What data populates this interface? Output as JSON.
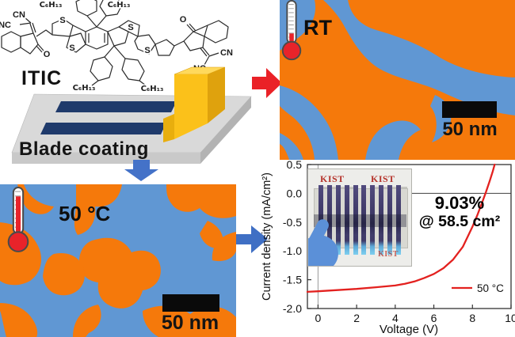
{
  "molecule": {
    "name": "ITIC",
    "labels": {
      "cn_top_left": "CN",
      "nc_left": "NC",
      "o_left": "O",
      "s1": "S",
      "s2": "S",
      "s3": "S",
      "s4": "S",
      "o_right": "O",
      "nc_right": "NC",
      "cn_right": "CN"
    },
    "hexyl_labels": [
      "C₆H₁₃",
      "C₆H₁₃",
      "C₆H₁₃",
      "C₆H₁₃"
    ]
  },
  "process": {
    "caption": "Blade coating"
  },
  "rt_panel": {
    "temp_label": "RT",
    "scale_bar_label": "50 nm"
  },
  "heated_panel": {
    "temp_label": "50 °C",
    "scale_bar_label": "50 nm"
  },
  "colors": {
    "domain_orange": "#F5790B",
    "domain_blue": "#6097D3",
    "arrow_red": "#EA2127",
    "arrow_blue": "#4472C8",
    "curve_red": "#E3211F",
    "film_navy": "#1F3A6B",
    "blade_yellow": "#FBC11A"
  },
  "inset_photo": {
    "logo": "KIST",
    "stripe_count": 10
  },
  "chart_data": {
    "type": "line",
    "title": "",
    "xlabel": "Voltage (V)",
    "ylabel": "Current density (mA/cm²)",
    "xlim": [
      -0.55,
      10
    ],
    "ylim": [
      -2.0,
      0.5
    ],
    "x_tick_labels": [
      "0",
      "2",
      "4",
      "6",
      "8",
      "10"
    ],
    "y_tick_labels": [
      "0.5",
      "0.0",
      "-0.5",
      "-1.0",
      "-1.5",
      "-2.0"
    ],
    "grid": false,
    "zero_lines": true,
    "legend_position": "lower right",
    "annotation": {
      "line1": "9.03%",
      "line2": "@ 58.5 cm²"
    },
    "series": [
      {
        "name": "50 °C",
        "color": "#E3211F",
        "x": [
          -0.55,
          0,
          1,
          2,
          3,
          4,
          4.5,
          5,
          5.5,
          6,
          6.5,
          7,
          7.5,
          8,
          8.25,
          8.5,
          8.7,
          8.9,
          9.05,
          9.15
        ],
        "y": [
          -1.71,
          -1.7,
          -1.68,
          -1.66,
          -1.63,
          -1.6,
          -1.57,
          -1.53,
          -1.47,
          -1.4,
          -1.3,
          -1.15,
          -0.93,
          -0.58,
          -0.38,
          -0.16,
          0.02,
          0.22,
          0.38,
          0.5
        ]
      }
    ]
  }
}
